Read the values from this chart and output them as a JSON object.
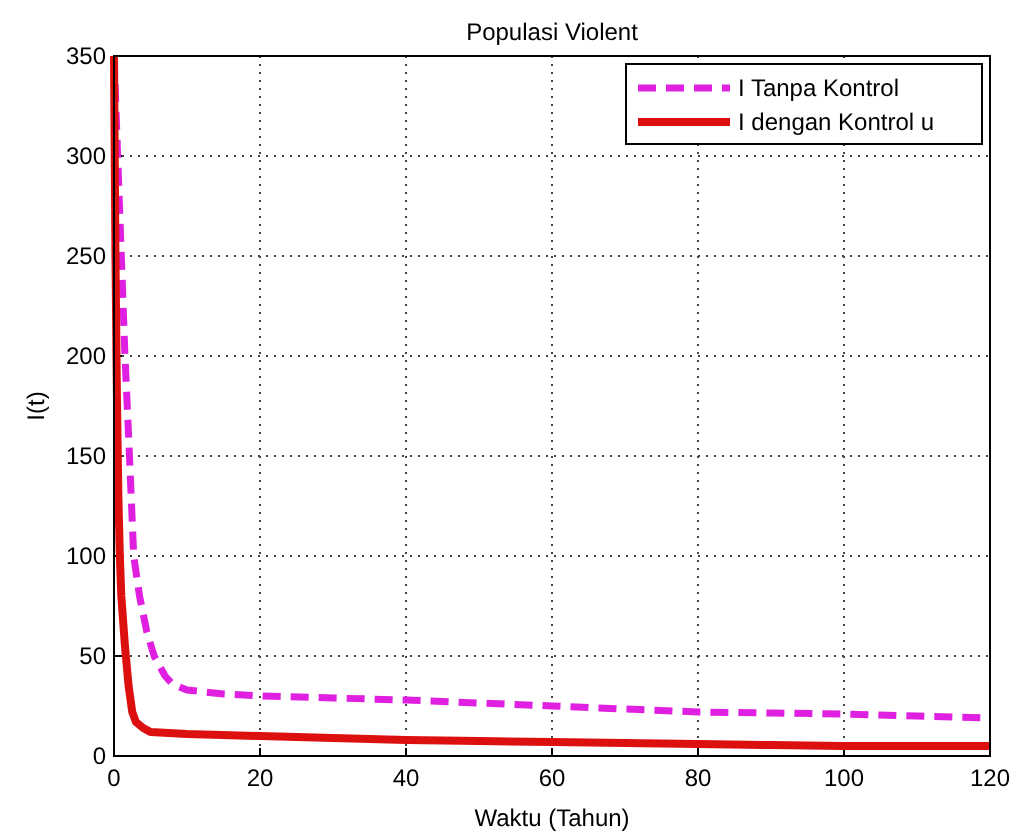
{
  "chart_data": {
    "type": "line",
    "title": "Populasi Violent",
    "xlabel": "Waktu (Tahun)",
    "ylabel": "I(t)",
    "xlim": [
      0,
      120
    ],
    "ylim": [
      0,
      350
    ],
    "xticks": [
      0,
      20,
      40,
      60,
      80,
      100,
      120
    ],
    "yticks": [
      0,
      50,
      100,
      150,
      200,
      250,
      300,
      350
    ],
    "grid": true,
    "legend": "top right",
    "series": [
      {
        "name": "I Tanpa Kontrol",
        "color": "#e020e0",
        "line_style": "dashed",
        "x": [
          0,
          0.5,
          1,
          1.5,
          2,
          2.7,
          3.5,
          4.5,
          5.5,
          7,
          8,
          10,
          15,
          20,
          30,
          40,
          50,
          60,
          70,
          80,
          90,
          100,
          110,
          120
        ],
        "values": [
          350,
          300,
          250,
          200,
          160,
          100,
          80,
          62,
          50,
          40,
          36,
          33,
          31,
          30,
          29,
          28,
          26.5,
          25,
          23.5,
          22,
          21.5,
          21,
          20,
          19
        ]
      },
      {
        "name": "I dengan Kontrol u",
        "color": "#dd1010",
        "line_style": "solid",
        "x": [
          0,
          0.2,
          0.4,
          0.6,
          0.8,
          1,
          1.5,
          2,
          2.5,
          3,
          4,
          5,
          10,
          20,
          30,
          40,
          50,
          60,
          70,
          80,
          90,
          100,
          110,
          120
        ],
        "values": [
          350,
          250,
          180,
          130,
          100,
          80,
          55,
          35,
          22,
          17,
          14,
          12,
          11,
          10,
          9,
          8,
          7.5,
          7,
          6.5,
          6,
          5.5,
          5,
          5,
          5
        ]
      }
    ]
  }
}
